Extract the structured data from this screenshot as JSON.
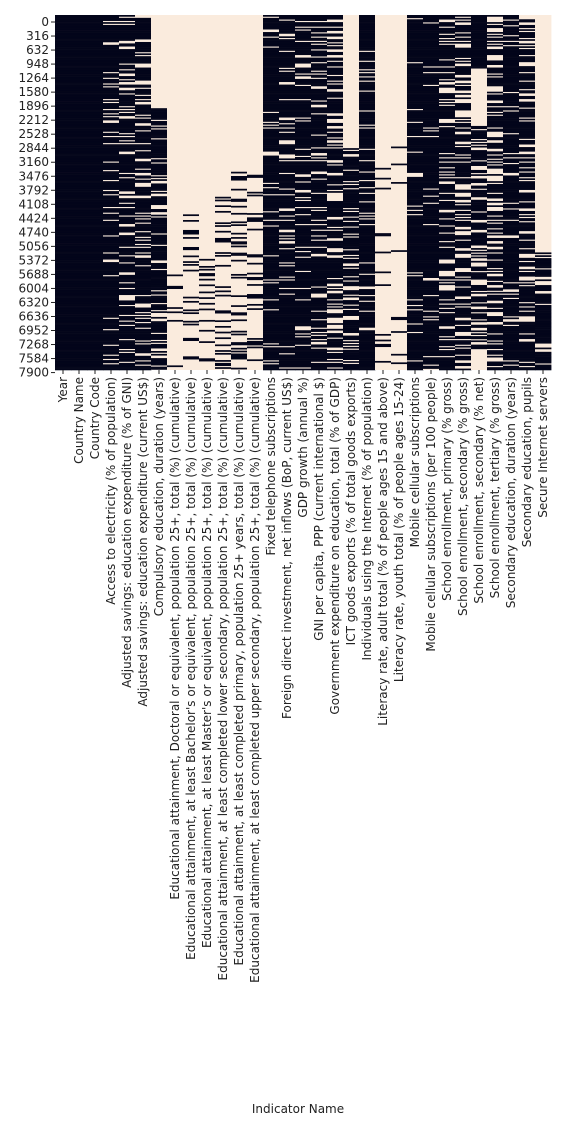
{
  "chart_data": {
    "type": "heatmap",
    "title": "",
    "xlabel": "Indicator Name",
    "ylabel": "",
    "colorbar": false,
    "grid": false,
    "legend": "none",
    "colors": {
      "missing": "#FAEBDD",
      "present": "#03051A"
    },
    "n_rows": 8000,
    "row_step": 316,
    "y_tick_labels": [
      "0",
      "316",
      "632",
      "948",
      "1264",
      "1580",
      "1896",
      "2212",
      "2528",
      "2844",
      "3160",
      "3476",
      "3792",
      "4108",
      "4424",
      "4740",
      "5056",
      "5372",
      "5688",
      "6004",
      "6320",
      "6636",
      "6952",
      "7268",
      "7584",
      "7900"
    ],
    "x_tick_labels": [
      "Year",
      "Country Name",
      "Country Code",
      "Access to electricity (% of population)",
      "Adjusted savings: education expenditure (% of GNI)",
      "Adjusted savings: education expenditure (current US$)",
      "Compulsory education, duration (years)",
      "Educational attainment, Doctoral or equivalent, population 25+, total (%) (cumulative)",
      "Educational attainment, at least Bachelor's or equivalent, population 25+, total (%) (cumulative)",
      "Educational attainment, at least Master's or equivalent, population 25+, total (%) (cumulative)",
      "Educational attainment, at least completed lower secondary, population 25+, total (%) (cumulative)",
      "Educational attainment, at least completed primary, population 25+ years, total (%) (cumulative)",
      "Educational attainment, at least completed upper secondary, population 25+, total (%) (cumulative)",
      "Fixed telephone subscriptions",
      "Foreign direct investment, net inflows (BoP, current US$)",
      "GDP growth (annual %)",
      "GNI per capita, PPP (current international $)",
      "Government expenditure on education, total (% of GDP)",
      "ICT goods exports (% of total goods exports)",
      "Individuals using the Internet (% of population)",
      "Literacy rate, adult total (% of people ages 15 and above)",
      "Literacy rate, youth total (% of people ages 15-24)",
      "Mobile cellular subscriptions",
      "Mobile cellular subscriptions (per 100 people)",
      "School enrollment, primary (% gross)",
      "School enrollment, secondary (% gross)",
      "School enrollment, secondary (% net)",
      "School enrollment, tertiary (% gross)",
      "Secondary education, duration (years)",
      "Secondary education, pupils",
      "Secure Internet servers"
    ],
    "column_missing_fraction": [
      0.0,
      0.0,
      0.0,
      0.15,
      0.22,
      0.3,
      0.45,
      0.97,
      0.93,
      0.95,
      0.88,
      0.85,
      0.9,
      0.1,
      0.2,
      0.15,
      0.25,
      0.35,
      0.55,
      0.12,
      0.97,
      0.96,
      0.08,
      0.1,
      0.25,
      0.35,
      0.55,
      0.4,
      0.1,
      0.3,
      0.75
    ],
    "column_present_row_ranges": [
      [
        [
          0,
          8000
        ]
      ],
      [
        [
          0,
          8000
        ]
      ],
      [
        [
          0,
          8000
        ]
      ],
      [
        [
          0,
          8000
        ]
      ],
      [
        [
          0,
          8000
        ]
      ],
      [
        [
          0,
          8000
        ]
      ],
      [
        [
          2100,
          8000
        ]
      ],
      [
        [
          5400,
          8000
        ]
      ],
      [
        [
          4300,
          8000
        ]
      ],
      [
        [
          5400,
          8000
        ]
      ],
      [
        [
          4000,
          8000
        ]
      ],
      [
        [
          3500,
          8000
        ]
      ],
      [
        [
          3600,
          8000
        ]
      ],
      [
        [
          0,
          8000
        ]
      ],
      [
        [
          0,
          8000
        ]
      ],
      [
        [
          0,
          8000
        ]
      ],
      [
        [
          0,
          8000
        ]
      ],
      [
        [
          0,
          8000
        ]
      ],
      [
        [
          3000,
          8000
        ]
      ],
      [
        [
          0,
          8000
        ]
      ],
      [
        [
          2900,
          8000
        ]
      ],
      [
        [
          2900,
          8000
        ]
      ],
      [
        [
          0,
          8000
        ]
      ],
      [
        [
          0,
          8000
        ]
      ],
      [
        [
          0,
          8000
        ]
      ],
      [
        [
          0,
          8000
        ]
      ],
      [
        [
          0,
          1200
        ],
        [
          2500,
          7600
        ]
      ],
      [
        [
          0,
          8000
        ]
      ],
      [
        [
          0,
          8000
        ]
      ],
      [
        [
          0,
          8000
        ]
      ],
      [
        [
          5350,
          8000
        ]
      ]
    ]
  }
}
